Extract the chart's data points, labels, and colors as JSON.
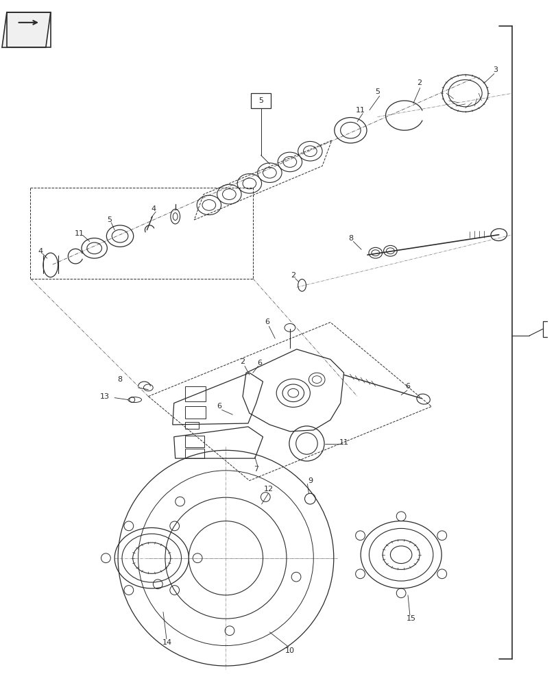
{
  "bg_color": "#ffffff",
  "lc": "#2a2a2a",
  "fig_w": 8.12,
  "fig_h": 10.0,
  "dpi": 100
}
